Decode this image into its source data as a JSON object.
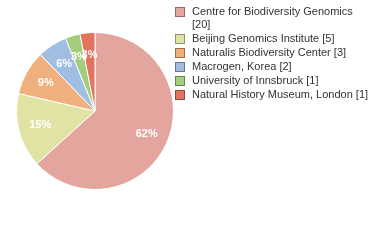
{
  "chart_data": {
    "type": "pie",
    "categories": [
      "Centre for Biodiversity Genomics [20]",
      "Beijing Genomics Institute [5]",
      "Naturalis Biodiversity Center [3]",
      "Macrogen, Korea [2]",
      "University of Innsbruck [1]",
      "Natural History Museum, London [1]"
    ],
    "values": [
      62,
      15,
      9,
      6,
      3,
      3
    ],
    "value_labels": [
      "62%",
      "15%",
      "9%",
      "6%",
      "3%",
      "3%"
    ],
    "colors": [
      "#e3a59d",
      "#e0e3a3",
      "#f0b07e",
      "#a0bde2",
      "#a3cc7c",
      "#e2735f"
    ],
    "data_labels": true,
    "legend": "upper right"
  }
}
